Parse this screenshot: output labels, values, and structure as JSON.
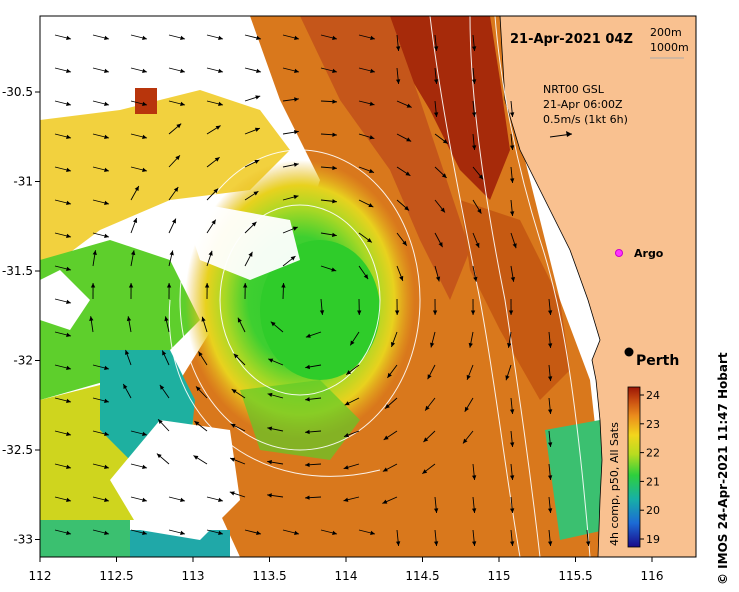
{
  "header": {
    "datetime": "21-Apr-2021 04Z",
    "contour_1": "200m",
    "contour_2": "1000m"
  },
  "vector_legend": {
    "line1": "NRT00 GSL",
    "line2": "21-Apr 06:00Z",
    "line3": "0.5m/s (1kt 6h)"
  },
  "markers": {
    "argo": "Argo",
    "perth": "Perth"
  },
  "axes": {
    "x_ticks": [
      "112",
      "112.5",
      "113",
      "113.5",
      "114",
      "114.5",
      "115",
      "115.5",
      "116"
    ],
    "y_ticks": [
      "-30.5",
      "-31",
      "-31.5",
      "-32",
      "-32.5",
      "-33"
    ]
  },
  "colorbar": {
    "label": "4h comp, p50, All Sats",
    "ticks": [
      "24",
      "23",
      "22",
      "21",
      "20",
      "19"
    ]
  },
  "credit": "© IMOS 24-Apr-2021 11:47 Hobart",
  "colors": {
    "land": "#f9c190",
    "warm": "#a81f08",
    "cool": "#2ecc3a",
    "cold": "#16a6a0"
  }
}
